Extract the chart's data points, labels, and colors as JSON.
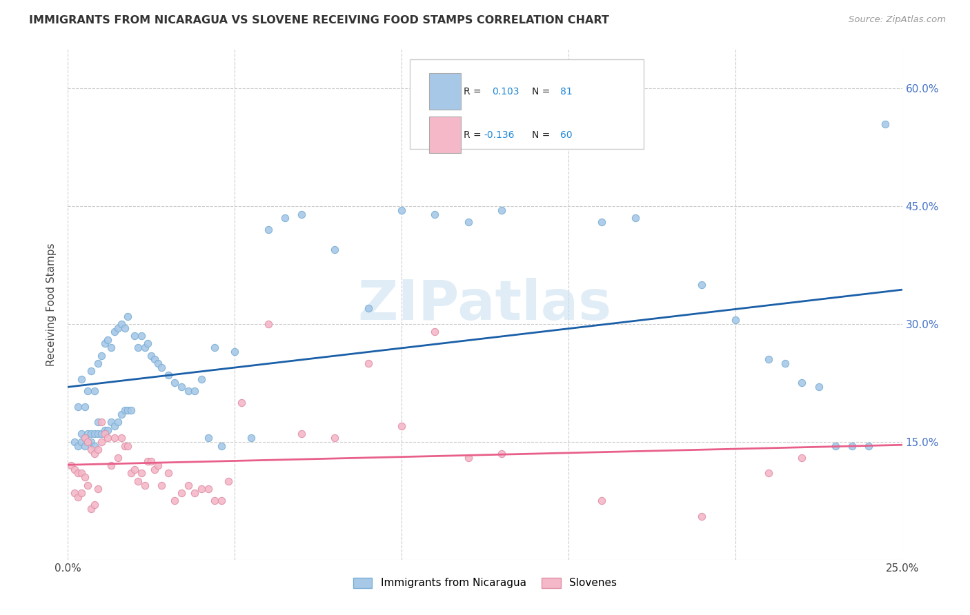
{
  "title": "IMMIGRANTS FROM NICARAGUA VS SLOVENE RECEIVING FOOD STAMPS CORRELATION CHART",
  "source": "Source: ZipAtlas.com",
  "ylabel": "Receiving Food Stamps",
  "xlim": [
    0.0,
    0.25
  ],
  "ylim": [
    0.0,
    0.65
  ],
  "x_ticks": [
    0.0,
    0.05,
    0.1,
    0.15,
    0.2,
    0.25
  ],
  "x_tick_labels": [
    "0.0%",
    "",
    "",
    "",
    "",
    "25.0%"
  ],
  "y_ticks": [
    0.0,
    0.15,
    0.3,
    0.45,
    0.6
  ],
  "y_tick_labels": [
    "",
    "15.0%",
    "30.0%",
    "45.0%",
    "60.0%"
  ],
  "watermark": "ZIPatlas",
  "nicaragua_color": "#a8c8e8",
  "nicaragua_edge": "#7aafd4",
  "slovene_color": "#f4b8c8",
  "slovene_edge": "#e090a8",
  "trendline_nicaragua_color": "#1a5fa8",
  "trendline_slovene_color": "#e8608a",
  "background_color": "#ffffff",
  "grid_color": "#cccccc",
  "nicaragua_x": [
    0.002,
    0.003,
    0.003,
    0.004,
    0.004,
    0.004,
    0.005,
    0.005,
    0.005,
    0.006,
    0.006,
    0.006,
    0.007,
    0.007,
    0.007,
    0.008,
    0.008,
    0.008,
    0.009,
    0.009,
    0.009,
    0.01,
    0.01,
    0.011,
    0.011,
    0.012,
    0.012,
    0.013,
    0.013,
    0.014,
    0.014,
    0.015,
    0.015,
    0.016,
    0.016,
    0.017,
    0.017,
    0.018,
    0.018,
    0.019,
    0.02,
    0.021,
    0.022,
    0.023,
    0.024,
    0.025,
    0.026,
    0.027,
    0.028,
    0.03,
    0.032,
    0.034,
    0.036,
    0.038,
    0.04,
    0.042,
    0.044,
    0.046,
    0.05,
    0.055,
    0.06,
    0.065,
    0.07,
    0.08,
    0.09,
    0.1,
    0.11,
    0.12,
    0.13,
    0.16,
    0.17,
    0.19,
    0.2,
    0.21,
    0.215,
    0.22,
    0.225,
    0.23,
    0.235,
    0.24,
    0.245
  ],
  "nicaragua_y": [
    0.15,
    0.145,
    0.195,
    0.15,
    0.16,
    0.23,
    0.145,
    0.155,
    0.195,
    0.15,
    0.16,
    0.215,
    0.15,
    0.16,
    0.24,
    0.145,
    0.16,
    0.215,
    0.16,
    0.175,
    0.25,
    0.16,
    0.26,
    0.165,
    0.275,
    0.165,
    0.28,
    0.175,
    0.27,
    0.17,
    0.29,
    0.175,
    0.295,
    0.185,
    0.3,
    0.19,
    0.295,
    0.19,
    0.31,
    0.19,
    0.285,
    0.27,
    0.285,
    0.27,
    0.275,
    0.26,
    0.255,
    0.25,
    0.245,
    0.235,
    0.225,
    0.22,
    0.215,
    0.215,
    0.23,
    0.155,
    0.27,
    0.145,
    0.265,
    0.155,
    0.42,
    0.435,
    0.44,
    0.395,
    0.32,
    0.445,
    0.44,
    0.43,
    0.445,
    0.43,
    0.435,
    0.35,
    0.305,
    0.255,
    0.25,
    0.225,
    0.22,
    0.145,
    0.145,
    0.145,
    0.555
  ],
  "slovene_x": [
    0.001,
    0.002,
    0.002,
    0.003,
    0.003,
    0.004,
    0.004,
    0.005,
    0.005,
    0.006,
    0.006,
    0.007,
    0.007,
    0.008,
    0.008,
    0.009,
    0.009,
    0.01,
    0.01,
    0.011,
    0.012,
    0.013,
    0.014,
    0.015,
    0.016,
    0.017,
    0.018,
    0.019,
    0.02,
    0.021,
    0.022,
    0.023,
    0.024,
    0.025,
    0.026,
    0.027,
    0.028,
    0.03,
    0.032,
    0.034,
    0.036,
    0.038,
    0.04,
    0.042,
    0.044,
    0.046,
    0.048,
    0.052,
    0.06,
    0.07,
    0.08,
    0.09,
    0.1,
    0.11,
    0.12,
    0.13,
    0.16,
    0.19,
    0.21,
    0.22
  ],
  "slovene_y": [
    0.12,
    0.115,
    0.085,
    0.11,
    0.08,
    0.11,
    0.085,
    0.155,
    0.105,
    0.15,
    0.095,
    0.14,
    0.065,
    0.135,
    0.07,
    0.14,
    0.09,
    0.175,
    0.15,
    0.16,
    0.155,
    0.12,
    0.155,
    0.13,
    0.155,
    0.145,
    0.145,
    0.11,
    0.115,
    0.1,
    0.11,
    0.095,
    0.125,
    0.125,
    0.115,
    0.12,
    0.095,
    0.11,
    0.075,
    0.085,
    0.095,
    0.085,
    0.09,
    0.09,
    0.075,
    0.075,
    0.1,
    0.2,
    0.3,
    0.16,
    0.155,
    0.25,
    0.17,
    0.29,
    0.13,
    0.135,
    0.075,
    0.055,
    0.11,
    0.13
  ]
}
